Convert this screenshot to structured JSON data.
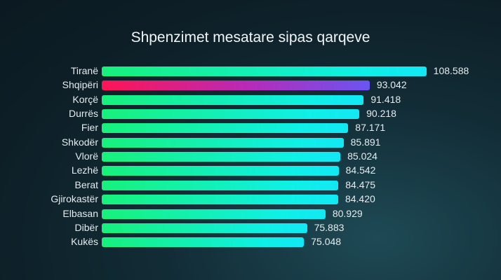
{
  "chart_data": {
    "type": "bar",
    "orientation": "horizontal",
    "title": "Shpenzimet mesatare sipas qarqeve",
    "categories": [
      "Tiranë",
      "Shqipëri",
      "Korçë",
      "Durrës",
      "Fier",
      "Shkodër",
      "Vlorë",
      "Lezhë",
      "Berat",
      "Gjirokastër",
      "Elbasan",
      "Dibër",
      "Kukës"
    ],
    "values": [
      108.588,
      93.042,
      91.418,
      90.218,
      87.171,
      85.891,
      85.024,
      84.542,
      84.475,
      84.42,
      80.929,
      75.883,
      75.048
    ],
    "value_labels": [
      "108.588",
      "93.042",
      "91.418",
      "90.218",
      "87.171",
      "85.891",
      "85.024",
      "84.542",
      "84.475",
      "84.420",
      "80.929",
      "75.883",
      "75.048"
    ],
    "highlight": "Shqipëri",
    "colors": {
      "bar_start": "#17f17a",
      "bar_end": "#12e8f5",
      "highlight_start": "#ff1454",
      "highlight_end": "#6a55f0"
    },
    "grid": false,
    "legend": "none"
  }
}
